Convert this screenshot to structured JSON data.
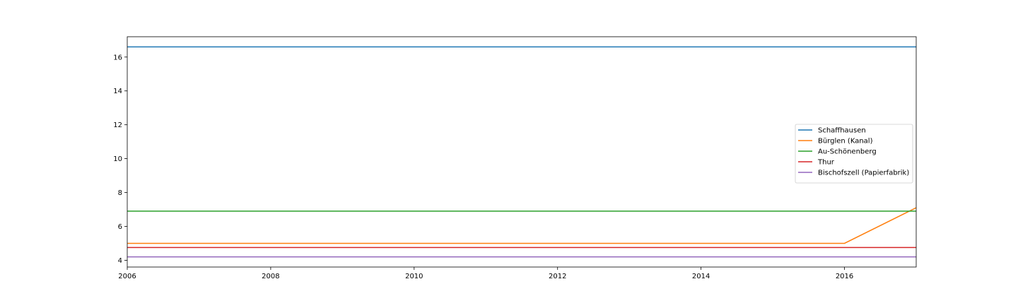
{
  "chart_data": {
    "type": "line",
    "title": "",
    "xlabel": "",
    "ylabel": "",
    "xlim": [
      2006,
      2017
    ],
    "ylim": [
      3.6,
      17.2
    ],
    "x_ticks": [
      2006,
      2008,
      2010,
      2012,
      2014,
      2016
    ],
    "x_tick_labels": [
      "2006",
      "2008",
      "2010",
      "2012",
      "2014",
      "2016"
    ],
    "y_ticks": [
      4,
      6,
      8,
      10,
      12,
      14,
      16
    ],
    "y_tick_labels": [
      "4",
      "6",
      "8",
      "10",
      "12",
      "14",
      "16"
    ],
    "grid": false,
    "legend_position": "center-right",
    "series": [
      {
        "name": "Schaffhausen",
        "color": "#1f77b4",
        "points": [
          [
            2006,
            16.6
          ],
          [
            2017,
            16.6
          ]
        ]
      },
      {
        "name": "Bürglen (Kanal)",
        "color": "#ff7f0e",
        "points": [
          [
            2006,
            5.0
          ],
          [
            2016,
            5.0
          ],
          [
            2017,
            7.1
          ]
        ]
      },
      {
        "name": "Au-Schönenberg",
        "color": "#2ca02c",
        "points": [
          [
            2006,
            6.9
          ],
          [
            2017,
            6.9
          ]
        ]
      },
      {
        "name": "Thur",
        "color": "#d62728",
        "points": [
          [
            2006,
            4.75
          ],
          [
            2017,
            4.75
          ]
        ]
      },
      {
        "name": "Bischofszell (Papierfabrik)",
        "color": "#9467bd",
        "points": [
          [
            2006,
            4.2
          ],
          [
            2017,
            4.2
          ]
        ]
      }
    ]
  }
}
